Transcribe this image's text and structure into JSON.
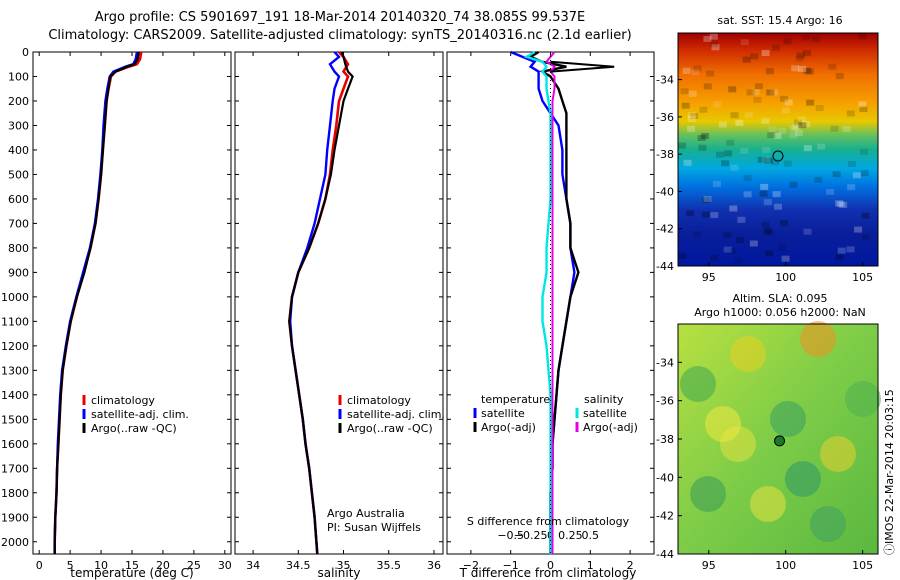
{
  "title": {
    "line1": "Argo profile: CS 5901697_191 18-Mar-2014 20140320_74 38.085S 99.537E",
    "line2": "Climatology: CARS2009. Satellite-adjusted climatology: synTS_20140316.nc (2.1d earlier)"
  },
  "colors": {
    "climatology": "#e60000",
    "satellite": "#0000ff",
    "argo": "#000000",
    "sal_satellite": "#00e6e6",
    "sal_argo": "#e600e6"
  },
  "depth_axis": {
    "ylim": [
      0,
      2050
    ],
    "ticks": [
      0,
      100,
      200,
      300,
      400,
      500,
      600,
      700,
      800,
      900,
      1000,
      1100,
      1200,
      1300,
      1400,
      1500,
      1600,
      1700,
      1800,
      1900,
      2000
    ],
    "tick_labels": [
      "0",
      "100",
      "200",
      "300",
      "400",
      "500",
      "600",
      "700",
      "800",
      "900",
      "1000",
      "1100",
      "1200",
      "1300",
      "1400",
      "1500",
      "1600",
      "1700",
      "1800",
      "1900",
      "2000"
    ]
  },
  "chart_data": [
    {
      "type": "line",
      "xlabel": "temperature (deg C)",
      "xlim": [
        -1,
        31
      ],
      "xticks": [
        0,
        5,
        10,
        15,
        20,
        25,
        30
      ],
      "xtick_labels": [
        "0",
        "5",
        "10",
        "15",
        "20",
        "25",
        "30"
      ],
      "depth": [
        0,
        30,
        50,
        60,
        80,
        100,
        150,
        200,
        300,
        400,
        500,
        600,
        700,
        800,
        900,
        1000,
        1100,
        1200,
        1300,
        1400,
        1500,
        1600,
        1700,
        1800,
        1900,
        2000,
        2050
      ],
      "series": [
        {
          "name": "climatology",
          "values": [
            16.5,
            16.3,
            15.8,
            14.5,
            12.3,
            11.6,
            11.2,
            10.9,
            10.6,
            10.3,
            10.0,
            9.6,
            9.1,
            8.3,
            7.2,
            6.1,
            5.1,
            4.4,
            3.8,
            3.5,
            3.3,
            3.1,
            2.9,
            2.8,
            2.6,
            2.5,
            2.5
          ]
        },
        {
          "name": "satellite-adj. clim.",
          "values": [
            15.8,
            15.6,
            15.2,
            13.9,
            12.0,
            11.4,
            11.0,
            10.7,
            10.4,
            10.2,
            9.9,
            9.5,
            9.0,
            8.2,
            7.1,
            6.0,
            5.0,
            4.3,
            3.7,
            3.4,
            3.2,
            3.0,
            2.9,
            2.8,
            2.6,
            2.5,
            2.5
          ]
        },
        {
          "name": "Argo(..raw -QC)",
          "values": [
            16.1,
            15.9,
            15.4,
            14.2,
            12.4,
            11.5,
            11.2,
            10.9,
            10.6,
            10.3,
            10.0,
            9.6,
            9.1,
            8.3,
            7.3,
            6.1,
            5.1,
            4.4,
            3.8,
            3.5,
            3.3,
            3.1,
            2.9,
            2.8,
            2.6,
            2.5,
            2.5
          ]
        }
      ]
    },
    {
      "type": "line",
      "xlabel": "salinity",
      "xlim": [
        33.8,
        36.1
      ],
      "xticks": [
        34,
        34.5,
        35,
        35.5,
        36
      ],
      "xtick_labels": [
        "34",
        "34.5",
        "35",
        "35.5",
        "36"
      ],
      "depth": [
        0,
        20,
        50,
        80,
        100,
        150,
        200,
        300,
        400,
        500,
        600,
        700,
        800,
        900,
        1000,
        1100,
        1200,
        1300,
        1400,
        1500,
        1600,
        1700,
        1800,
        1900,
        2000,
        2050
      ],
      "series": [
        {
          "name": "climatology",
          "values": [
            34.95,
            35.0,
            35.05,
            35.0,
            35.05,
            35.0,
            34.95,
            34.92,
            34.88,
            34.85,
            34.8,
            34.72,
            34.62,
            34.5,
            34.43,
            34.4,
            34.43,
            34.47,
            34.51,
            34.55,
            34.58,
            34.62,
            34.65,
            34.68,
            34.7,
            34.71
          ]
        },
        {
          "name": "satellite-adj. clim.",
          "values": [
            34.9,
            34.95,
            34.85,
            34.9,
            34.95,
            34.9,
            34.88,
            34.85,
            34.82,
            34.8,
            34.74,
            34.68,
            34.6,
            34.5,
            34.43,
            34.41,
            34.43,
            34.47,
            34.51,
            34.55,
            34.58,
            34.62,
            34.65,
            34.68,
            34.7,
            34.71
          ]
        },
        {
          "name": "Argo(..raw -QC)",
          "values": [
            34.98,
            35.0,
            35.02,
            35.05,
            35.1,
            35.05,
            35.0,
            34.95,
            34.9,
            34.86,
            34.8,
            34.72,
            34.62,
            34.5,
            34.43,
            34.4,
            34.43,
            34.47,
            34.51,
            34.55,
            34.58,
            34.62,
            34.65,
            34.68,
            34.7,
            34.71
          ]
        }
      ],
      "annotation": [
        "Argo Australia",
        "PI: Susan Wijffels"
      ]
    },
    {
      "type": "line",
      "xlabel": "T difference from climatology",
      "top_label": "S difference from climatology",
      "xlim": [
        -2.6,
        2.6
      ],
      "xticks": [
        -2,
        -1,
        0,
        1,
        2
      ],
      "xtick_labels": [
        "−2",
        "−1",
        "0",
        "1",
        "2"
      ],
      "top_ticks": [
        -1,
        -0.5,
        0,
        0.5,
        1
      ],
      "top_tick_labels": [
        "−0.5",
        "−0.25",
        "0",
        "0.25",
        "0.5"
      ],
      "depth": [
        0,
        20,
        40,
        60,
        80,
        100,
        150,
        200,
        250,
        300,
        400,
        500,
        600,
        700,
        800,
        900,
        1000,
        1100,
        1200,
        1300,
        1400,
        1500,
        1600,
        1700,
        1800,
        1900,
        2000,
        2050
      ],
      "series": [
        {
          "name": "temperature satellite",
          "values": [
            -1.0,
            -0.7,
            -0.4,
            -0.5,
            -0.3,
            -0.3,
            -0.3,
            -0.2,
            0.0,
            0.2,
            0.3,
            0.3,
            0.4,
            0.5,
            0.5,
            0.6,
            0.5,
            0.4,
            0.3,
            0.2,
            0.15,
            0.1,
            0.05,
            0.05,
            0.0,
            0.0,
            0.0,
            0.0
          ]
        },
        {
          "name": "temperature Argo(-adj)",
          "values": [
            -0.3,
            -0.5,
            -0.2,
            0.4,
            -0.2,
            0.0,
            0.2,
            0.3,
            0.4,
            0.4,
            0.4,
            0.4,
            0.4,
            0.5,
            0.5,
            0.7,
            0.5,
            0.4,
            0.3,
            0.2,
            0.15,
            0.1,
            0.05,
            0.05,
            0.0,
            0.0,
            0.0,
            0.0
          ]
        },
        {
          "name": "salinity satellite",
          "values": [
            -0.4,
            -0.6,
            -0.2,
            -0.1,
            -0.2,
            -0.1,
            -0.1,
            -0.05,
            0.0,
            0.0,
            0.0,
            0.0,
            0.0,
            -0.05,
            -0.1,
            -0.1,
            -0.2,
            -0.2,
            -0.1,
            -0.05,
            0.0,
            0.0,
            0.0,
            0.0,
            0.0,
            0.0,
            0.0,
            0.0
          ]
        },
        {
          "name": "salinity Argo(-adj)",
          "values": [
            0.1,
            0.0,
            -0.1,
            0.1,
            0.0,
            0.1,
            0.1,
            0.05,
            0.05,
            0.05,
            0.05,
            0.05,
            0.05,
            0.05,
            0.05,
            0.05,
            0.05,
            0.05,
            0.05,
            0.05,
            0.05,
            0.05,
            0.05,
            0.05,
            0.05,
            0.05,
            0.05,
            0.05
          ]
        }
      ],
      "spike": {
        "depth": [
          40,
          60,
          80
        ],
        "values": [
          0.0,
          1.6,
          0.0
        ]
      }
    },
    {
      "type": "heatmap",
      "title": "sat. SST: 15.4  Argo: 16",
      "xlim": [
        93,
        106
      ],
      "ylim": [
        -44,
        -31.5
      ],
      "xticks": [
        95,
        100,
        105
      ],
      "xtick_labels": [
        "95",
        "100",
        "105"
      ],
      "yticks": [
        -44,
        -42,
        -40,
        -38,
        -36,
        -34
      ],
      "ytick_labels": [
        "-44",
        "-42",
        "-40",
        "-38",
        "-36",
        "-34"
      ],
      "marker": [
        99.5,
        -38.1
      ]
    },
    {
      "type": "heatmap",
      "title_line1": "Altim. SLA: 0.095",
      "title_line2": "Argo h1000: 0.056 h2000: NaN",
      "xlim": [
        93,
        106
      ],
      "ylim": [
        -44,
        -32
      ],
      "xticks": [
        95,
        100,
        105
      ],
      "xtick_labels": [
        "95",
        "100",
        "105"
      ],
      "yticks": [
        -44,
        -42,
        -40,
        -38,
        -36,
        -34
      ],
      "ytick_labels": [
        "-44",
        "-42",
        "-40",
        "-38",
        "-36",
        "-34"
      ],
      "marker": [
        99.6,
        -38.1
      ]
    }
  ],
  "legends": {
    "temp": [
      "climatology",
      "satellite-adj. clim.",
      "Argo(..raw -QC)"
    ],
    "diff_left_header": "temperature",
    "diff_left": [
      "satellite",
      "Argo(-adj)"
    ],
    "diff_right_header": "salinity",
    "diff_right": [
      "satellite",
      "Argo(-adj)"
    ]
  },
  "watermark": "ⓘIMOS 22-Mar-2014 20:03:15"
}
